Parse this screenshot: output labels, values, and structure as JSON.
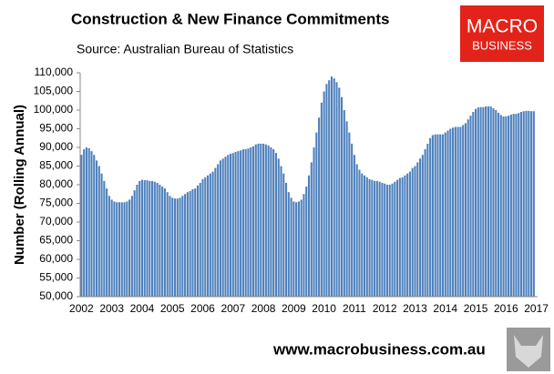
{
  "chart_data": {
    "type": "bar",
    "title": "Construction & New Finance Commitments",
    "subtitle": "Source: Australian  Bureau of Statistics",
    "y_label": "Number (Rolling Annual)",
    "footer": "www.macrobusiness.com.au",
    "logo": [
      "MACRO",
      "BUSINESS"
    ],
    "color": "#4f81bd",
    "ylim": [
      50000,
      110000
    ],
    "yticks": [
      {
        "value": 50000,
        "label": "50,000"
      },
      {
        "value": 55000,
        "label": "55,000"
      },
      {
        "value": 60000,
        "label": "60,000"
      },
      {
        "value": 65000,
        "label": "65,000"
      },
      {
        "value": 70000,
        "label": "70,000"
      },
      {
        "value": 75000,
        "label": "75,000"
      },
      {
        "value": 80000,
        "label": "80,000"
      },
      {
        "value": 85000,
        "label": "85,000"
      },
      {
        "value": 90000,
        "label": "90,000"
      },
      {
        "value": 95000,
        "label": "95,000"
      },
      {
        "value": 100000,
        "label": "100,000"
      },
      {
        "value": 105000,
        "label": "105,000"
      },
      {
        "value": 110000,
        "label": "110,000"
      }
    ],
    "categories": [
      "2002",
      null,
      null,
      null,
      null,
      null,
      null,
      null,
      null,
      null,
      null,
      null,
      "2003",
      null,
      null,
      null,
      null,
      null,
      null,
      null,
      null,
      null,
      null,
      null,
      "2004",
      null,
      null,
      null,
      null,
      null,
      null,
      null,
      null,
      null,
      null,
      null,
      "2005",
      null,
      null,
      null,
      null,
      null,
      null,
      null,
      null,
      null,
      null,
      null,
      "2006",
      null,
      null,
      null,
      null,
      null,
      null,
      null,
      null,
      null,
      null,
      null,
      "2007",
      null,
      null,
      null,
      null,
      null,
      null,
      null,
      null,
      null,
      null,
      null,
      "2008",
      null,
      null,
      null,
      null,
      null,
      null,
      null,
      null,
      null,
      null,
      null,
      "2009",
      null,
      null,
      null,
      null,
      null,
      null,
      null,
      null,
      null,
      null,
      null,
      "2010",
      null,
      null,
      null,
      null,
      null,
      null,
      null,
      null,
      null,
      null,
      null,
      "2011",
      null,
      null,
      null,
      null,
      null,
      null,
      null,
      null,
      null,
      null,
      null,
      "2012",
      null,
      null,
      null,
      null,
      null,
      null,
      null,
      null,
      null,
      null,
      null,
      "2013",
      null,
      null,
      null,
      null,
      null,
      null,
      null,
      null,
      null,
      null,
      null,
      "2014",
      null,
      null,
      null,
      null,
      null,
      null,
      null,
      null,
      null,
      null,
      null,
      "2015",
      null,
      null,
      null,
      null,
      null,
      null,
      null,
      null,
      null,
      null,
      null,
      "2016",
      null,
      null,
      null,
      null,
      null,
      null,
      null,
      null,
      null,
      null,
      null,
      "2017"
    ],
    "values": [
      88000,
      89500,
      90000,
      89800,
      89000,
      88000,
      86500,
      85000,
      83000,
      81000,
      79000,
      77000,
      76000,
      75500,
      75300,
      75300,
      75300,
      75300,
      75500,
      76000,
      77000,
      78500,
      80000,
      81000,
      81300,
      81200,
      81200,
      81000,
      81000,
      80800,
      80500,
      80000,
      79500,
      79000,
      78000,
      77000,
      76500,
      76300,
      76300,
      76500,
      77000,
      77500,
      78000,
      78300,
      78800,
      79000,
      79800,
      80500,
      81500,
      82000,
      82500,
      83000,
      83500,
      84500,
      85500,
      86500,
      87000,
      87500,
      88000,
      88300,
      88500,
      88800,
      89000,
      89200,
      89500,
      89500,
      89700,
      90000,
      90300,
      90800,
      91000,
      91000,
      91000,
      90800,
      90500,
      90000,
      89500,
      88500,
      87000,
      85000,
      83000,
      80500,
      78000,
      76500,
      75500,
      75300,
      75500,
      76000,
      77500,
      79500,
      82500,
      86000,
      90000,
      94000,
      98000,
      102000,
      105000,
      107000,
      108000,
      109000,
      108500,
      107500,
      106000,
      103500,
      100000,
      97000,
      94000,
      91000,
      88000,
      85500,
      84000,
      83000,
      82500,
      82000,
      81500,
      81300,
      81000,
      81000,
      80800,
      80500,
      80300,
      80000,
      80000,
      80300,
      80800,
      81300,
      81800,
      82000,
      82500,
      83000,
      83500,
      84500,
      85000,
      86000,
      87000,
      88000,
      89500,
      91000,
      92500,
      93300,
      93500,
      93500,
      93500,
      93500,
      94000,
      94500,
      95000,
      95300,
      95500,
      95500,
      95500,
      96000,
      96500,
      97500,
      98500,
      99500,
      100300,
      100700,
      100800,
      100800,
      101000,
      101000,
      101000,
      100500,
      100000,
      99300,
      98700,
      98300,
      98300,
      98500,
      98800,
      99000,
      99000,
      99200,
      99500,
      99700,
      99800,
      99800,
      99700,
      99700,
      null
    ]
  }
}
